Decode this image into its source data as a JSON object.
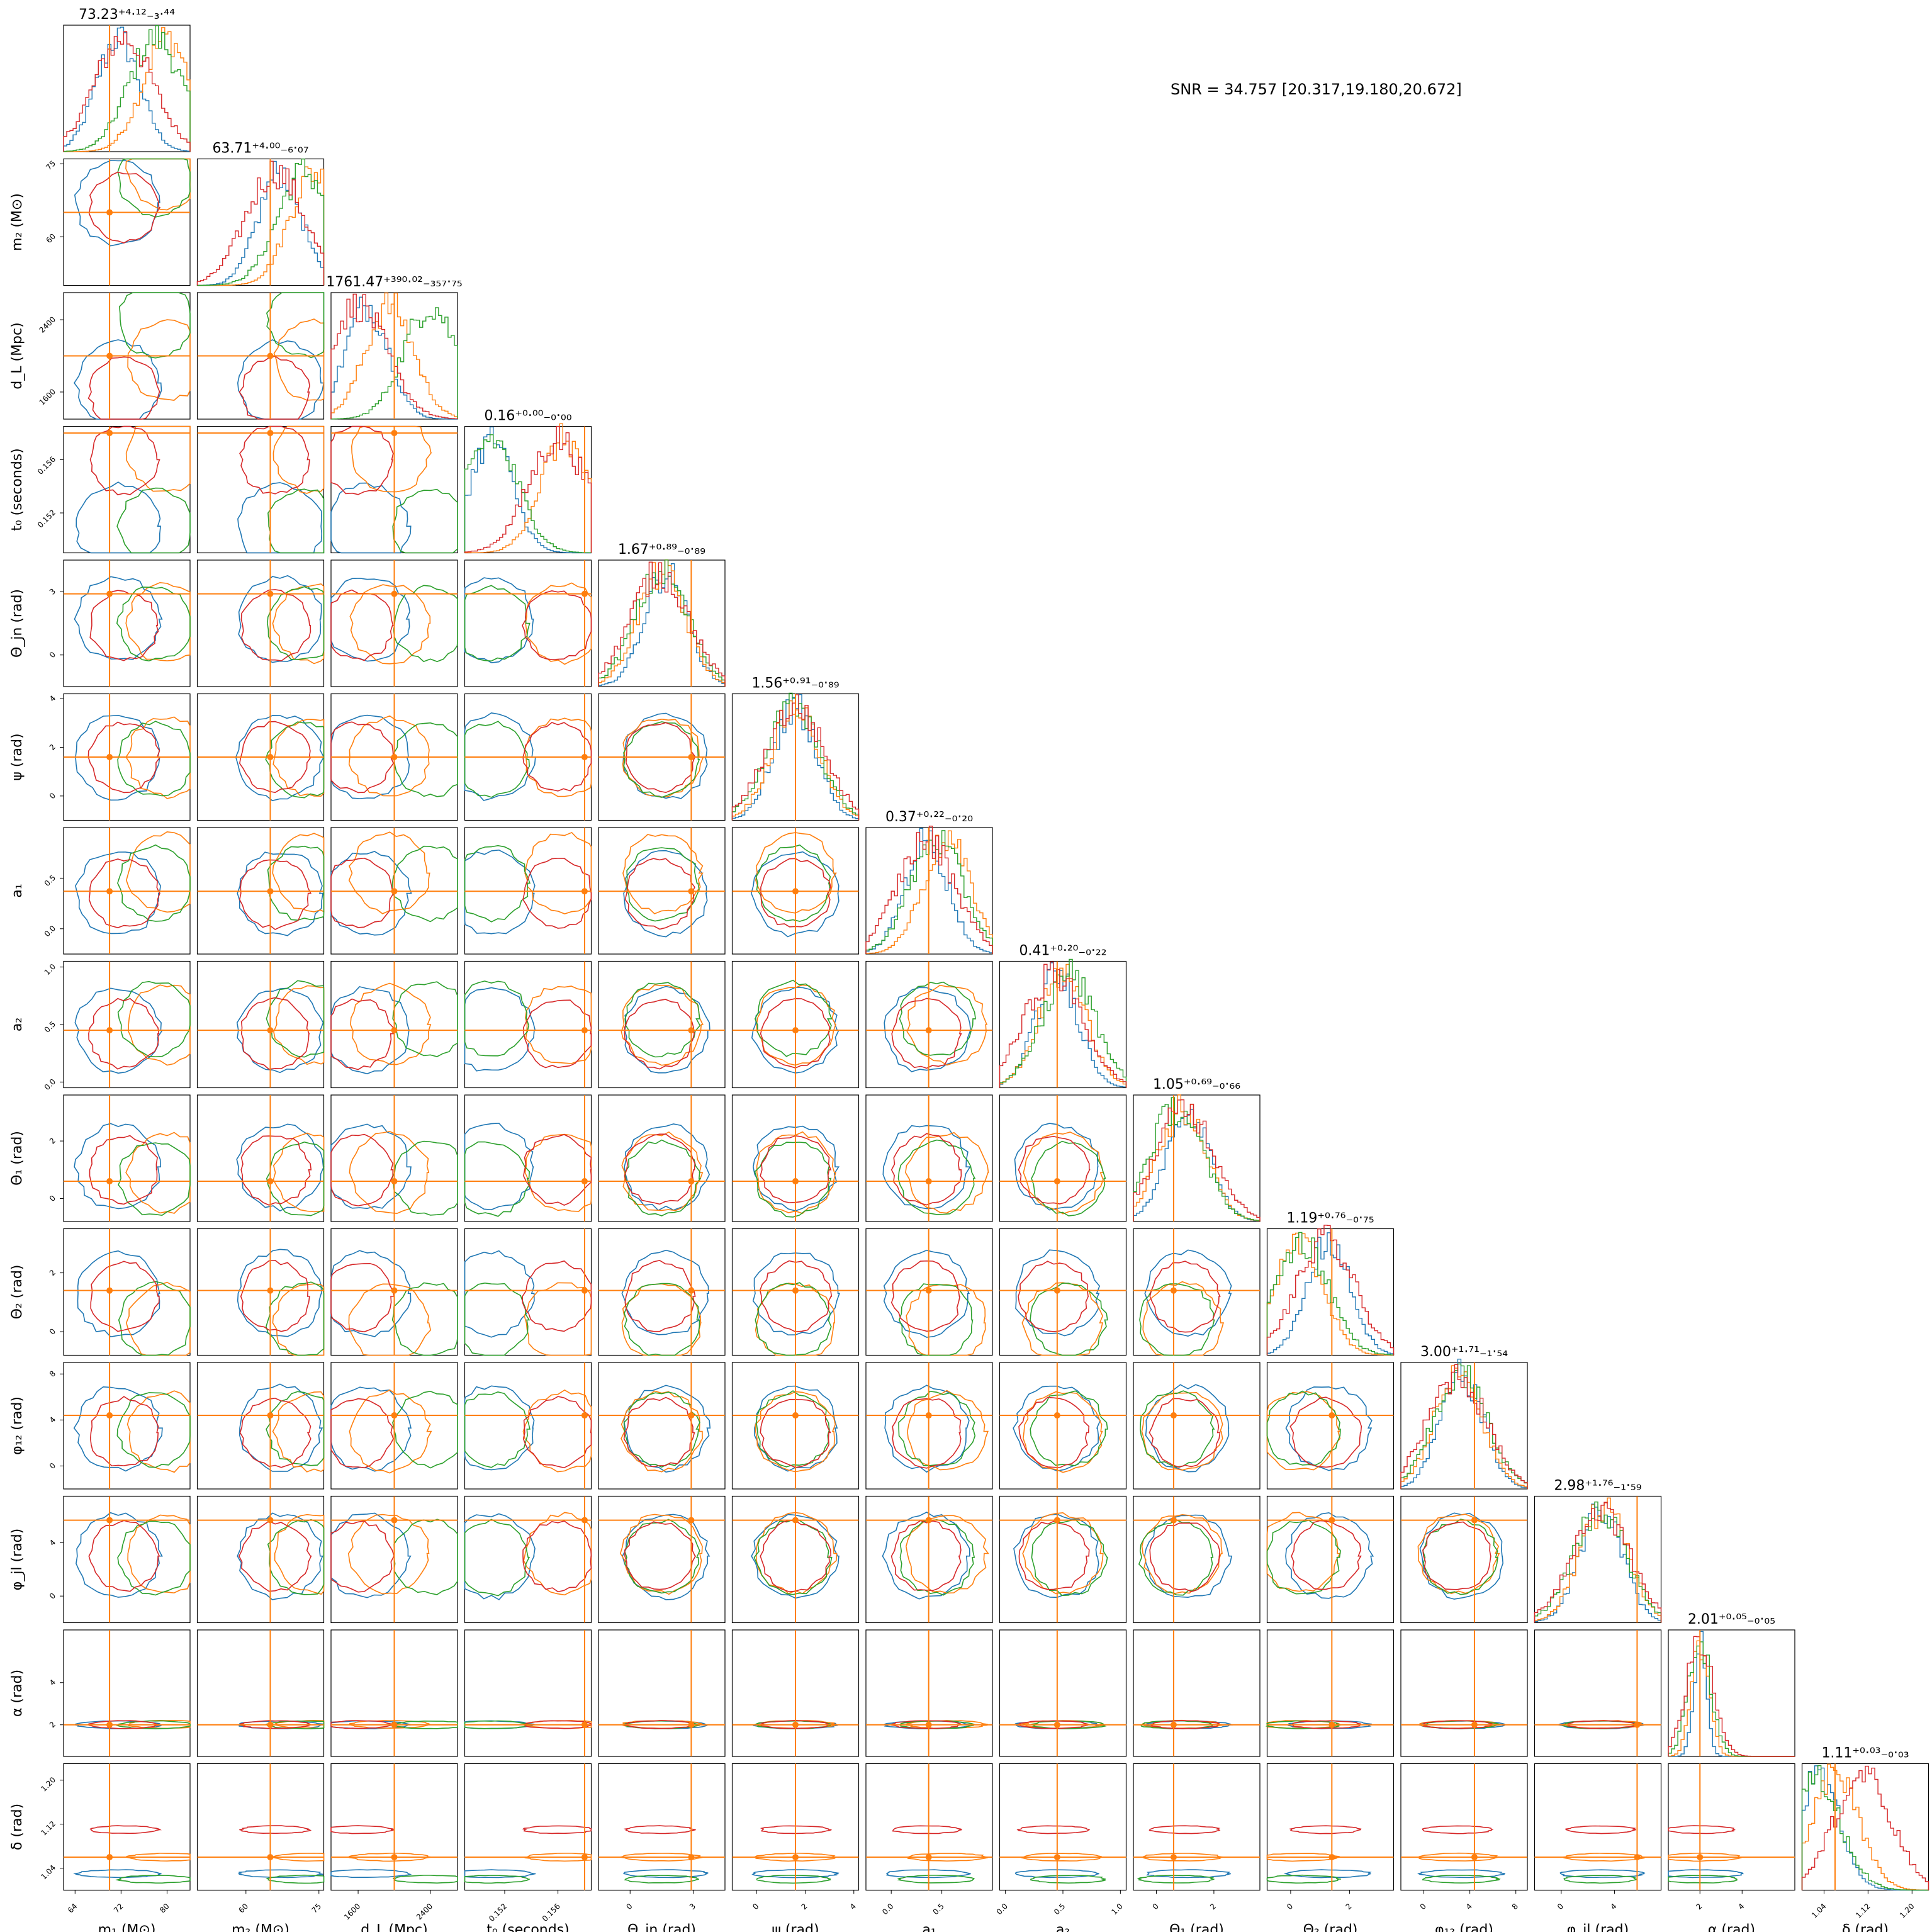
{
  "annotation": {
    "snr": "SNR = 34.757 [20.317,19.180,20.672]"
  },
  "colors": {
    "blue": "#1f77b4",
    "orange": "#ff7f0e",
    "green": "#2ca02c",
    "red": "#d62728",
    "truth": "#ff7f0e"
  },
  "chart_data": {
    "type": "corner",
    "series_colors": [
      "#1f77b4",
      "#ff7f0e",
      "#2ca02c",
      "#d62728"
    ],
    "grid": false,
    "parameters": [
      {
        "label": "m₁ (M⊙)",
        "title": "73.23⁺⁴·¹²₋₃·⁴⁴",
        "range": [
          62,
          84
        ],
        "truth": 70,
        "ticks": [
          "64",
          "72",
          "80"
        ],
        "tick_values": [
          64,
          72,
          80
        ],
        "peaks": [
          71.5,
          80,
          78,
          72.5
        ]
      },
      {
        "label": "m₂ (M⊙)",
        "title": "63.71⁺⁴·⁰⁰₋₆·₀₇",
        "range": [
          50,
          76
        ],
        "truth": 65,
        "ticks": [
          "60",
          "75"
        ],
        "tick_values": [
          60,
          75
        ],
        "peaks": [
          67,
          74,
          72,
          66
        ]
      },
      {
        "label": "d_L (Mpc)",
        "title": "1761.47⁺³⁹⁰·⁰²₋₃₅₇·₇₅",
        "range": [
          1300,
          2700
        ],
        "truth": 2000,
        "ticks": [
          "1600",
          "2400"
        ],
        "tick_values": [
          1600,
          2400
        ],
        "peaks": [
          1700,
          1950,
          2400,
          1600
        ]
      },
      {
        "label": "t₀ (seconds)",
        "title": "0.16⁺⁰·⁰⁰₋₀·₀₀",
        "range": [
          0.149,
          0.1585
        ],
        "truth": 0.158,
        "ticks": [
          "0.152",
          "0.156"
        ],
        "tick_values": [
          0.152,
          0.156
        ],
        "peaks": [
          0.151,
          0.1565,
          0.151,
          0.156
        ]
      },
      {
        "label": "Θ_jn (rad)",
        "title": "1.67⁺⁰·⁸⁹₋₀·₈₉",
        "range": [
          -1.5,
          4.5
        ],
        "truth": 2.9,
        "ticks": [
          "0",
          "3"
        ],
        "tick_values": [
          0,
          3
        ],
        "peaks": [
          1.7,
          1.5,
          1.5,
          1.4
        ]
      },
      {
        "label": "ψ (rad)",
        "title": "1.56⁺⁰·⁹¹₋₀·₈₉",
        "range": [
          -1,
          4.2
        ],
        "truth": 1.6,
        "ticks": [
          "0",
          "2",
          "4"
        ],
        "tick_values": [
          0,
          2,
          4
        ],
        "peaks": [
          1.6,
          1.6,
          1.5,
          1.6
        ]
      },
      {
        "label": "a₁",
        "title": "0.37⁺⁰·²²₋₀·₂₀",
        "range": [
          -0.25,
          1.0
        ],
        "truth": 0.37,
        "ticks": [
          "0.0",
          "0.5"
        ],
        "tick_values": [
          0,
          0.5
        ],
        "peaks": [
          0.35,
          0.55,
          0.45,
          0.35
        ]
      },
      {
        "label": "a₂",
        "title": "0.41⁺⁰·²⁰₋₀·₂₂",
        "range": [
          -0.05,
          1.05
        ],
        "truth": 0.45,
        "ticks": [
          "0.0",
          "0.5",
          "1.0"
        ],
        "tick_values": [
          0,
          0.5,
          1.0
        ],
        "peaks": [
          0.45,
          0.5,
          0.55,
          0.42
        ]
      },
      {
        "label": "Θ₁ (rad)",
        "title": "1.05⁺⁰·⁶⁹₋₀·₆₆",
        "range": [
          -0.8,
          3.6
        ],
        "truth": 0.6,
        "ticks": [
          "0",
          "2"
        ],
        "tick_values": [
          0,
          2
        ],
        "peaks": [
          1.1,
          0.9,
          0.7,
          1.0
        ]
      },
      {
        "label": "Θ₂ (rad)",
        "title": "1.19⁺⁰·⁷⁶₋₀·₇₅",
        "range": [
          -0.8,
          3.5
        ],
        "truth": 1.4,
        "ticks": [
          "0",
          "2"
        ],
        "tick_values": [
          0,
          2
        ],
        "peaks": [
          1.3,
          0.3,
          0.4,
          1.2
        ]
      },
      {
        "label": "φ₁₂ (rad)",
        "title": "3.00⁺¹·⁷¹₋₁·₅₄",
        "range": [
          -2,
          9
        ],
        "truth": 4.4,
        "ticks": [
          "0",
          "4",
          "8"
        ],
        "tick_values": [
          0,
          4,
          8
        ],
        "peaks": [
          3.3,
          3.0,
          3.2,
          2.9
        ]
      },
      {
        "label": "φ_jl (rad)",
        "title": "2.98⁺¹·⁷⁶₋₁·₅₉",
        "range": [
          -2,
          7.5
        ],
        "truth": 5.7,
        "ticks": [
          "0",
          "4"
        ],
        "tick_values": [
          0,
          4
        ],
        "peaks": [
          3.0,
          3.2,
          2.9,
          3.0
        ]
      },
      {
        "label": "α (rad)",
        "title": "2.01⁺⁰·⁰⁵₋₀·₀₅",
        "range": [
          0.5,
          6.5
        ],
        "truth": 2.0,
        "ticks": [
          "2",
          "4"
        ],
        "tick_values": [
          2,
          4
        ],
        "peaks": [
          2.0,
          2.02,
          2.0,
          2.01
        ]
      },
      {
        "label": "δ (rad)",
        "title": "1.11⁺⁰·⁰³₋₀·₀₃",
        "range": [
          1.0,
          1.23
        ],
        "truth": 1.06,
        "ticks": [
          "1.04",
          "1.12",
          "1.20"
        ],
        "tick_values": [
          1.04,
          1.12,
          1.2
        ],
        "peaks": [
          1.03,
          1.06,
          1.02,
          1.11
        ]
      }
    ]
  }
}
